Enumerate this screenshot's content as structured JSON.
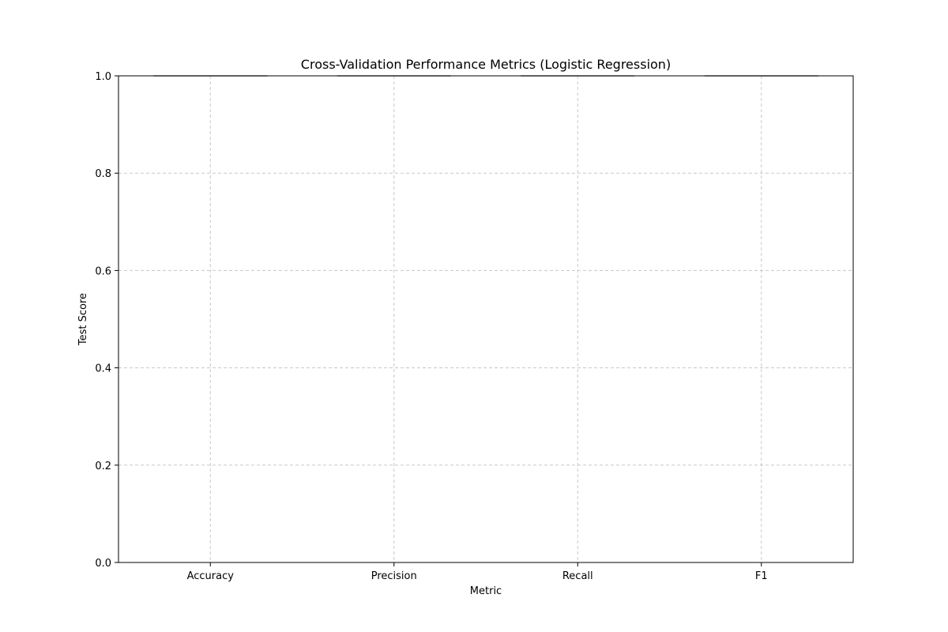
{
  "chart_data": {
    "type": "box",
    "title": "Cross-Validation Performance Metrics (Logistic Regression)",
    "xlabel": "Metric",
    "ylabel": "Test Score",
    "categories": [
      "Accuracy",
      "Precision",
      "Recall",
      "F1"
    ],
    "ylim": [
      0.0,
      1.0
    ],
    "yticks": [
      "0.0",
      "0.2",
      "0.4",
      "0.6",
      "0.8",
      "1.0"
    ],
    "grid": true,
    "series": [
      {
        "values": [
          {
            "min": 1.0,
            "q1": 1.0,
            "median": 1.0,
            "q3": 1.0,
            "max": 1.0
          },
          {
            "min": 1.0,
            "q1": 1.0,
            "median": 1.0,
            "q3": 1.0,
            "max": 1.0
          },
          {
            "min": 1.0,
            "q1": 1.0,
            "median": 1.0,
            "q3": 1.0,
            "max": 1.0
          },
          {
            "min": 1.0,
            "q1": 1.0,
            "median": 1.0,
            "q3": 1.0,
            "max": 1.0
          }
        ]
      }
    ],
    "colors": {
      "grid": "#c8c8c8",
      "axis": "#000000",
      "box": "#000000"
    }
  }
}
